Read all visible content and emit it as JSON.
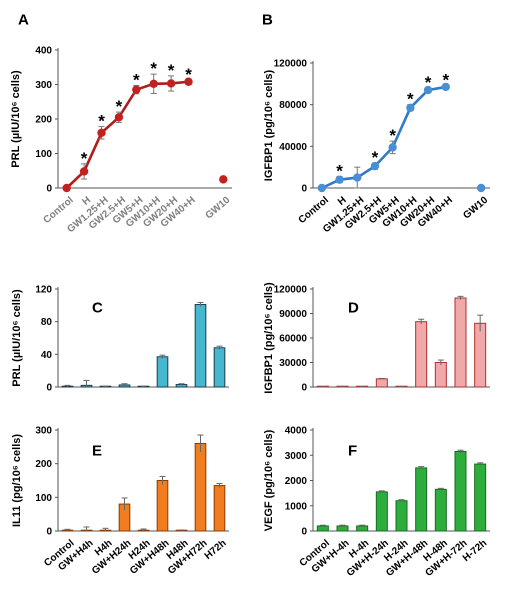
{
  "chart_data": [
    {
      "panel": "A",
      "type": "line",
      "ylabel": "PRL (µIU/10⁶ cells)",
      "ylim": [
        0,
        400
      ],
      "yticks": [
        0,
        100,
        200,
        300,
        400
      ],
      "categories": [
        "Control",
        "H",
        "GW1.25+H",
        "GW2.5+H",
        "GW5+H",
        "GW10+H",
        "GW20+H",
        "GW40+H",
        "",
        "GW10"
      ],
      "category_colors": [
        "#808080",
        "#808080",
        "#808080",
        "#808080",
        "#808080",
        "#808080",
        "#808080",
        "#808080",
        "#808080",
        "#808080"
      ],
      "series": [
        {
          "values": [
            0,
            48,
            160,
            205,
            285,
            302,
            303,
            308,
            null,
            25
          ],
          "errors": [
            0,
            22,
            18,
            15,
            12,
            28,
            22,
            5,
            null,
            2
          ]
        }
      ],
      "significant": [
        false,
        true,
        true,
        true,
        true,
        true,
        true,
        true,
        false,
        false
      ],
      "line_color": "#b01c1c",
      "marker_color": "#c42020"
    },
    {
      "panel": "B",
      "type": "line",
      "ylabel": "IGFBP1 (pg/10⁶ cells)",
      "ylim": [
        0,
        120000
      ],
      "yticks": [
        0,
        40000,
        80000,
        120000
      ],
      "categories": [
        "Control",
        "H",
        "GW1.25+H",
        "GW2.5+H",
        "GW5+H",
        "GW10+H",
        "GW20+H",
        "GW40+H",
        "",
        "GW10"
      ],
      "category_colors": [
        "#000000",
        "#000000",
        "#000000",
        "#000000",
        "#000000",
        "#000000",
        "#000000",
        "#000000",
        "#000000",
        "#000000"
      ],
      "series": [
        {
          "values": [
            0,
            8000,
            10000,
            21000,
            39000,
            77000,
            94000,
            97000,
            null,
            0
          ],
          "errors": [
            0,
            3000,
            10000,
            3000,
            6000,
            3000,
            2000,
            1500,
            null,
            0
          ]
        }
      ],
      "significant": [
        false,
        true,
        false,
        true,
        true,
        true,
        true,
        true,
        false,
        false
      ],
      "line_color": "#2f7bc4",
      "marker_color": "#4a8fd6"
    },
    {
      "panel": "C",
      "type": "bar",
      "ylabel": "PRL (µIU/10⁶ cells)",
      "ylim": [
        0,
        120
      ],
      "yticks": [
        0,
        40,
        80,
        120
      ],
      "values": [
        0.5,
        2,
        0.5,
        2.5,
        0.5,
        37,
        3,
        101,
        48
      ],
      "errors": [
        1.5,
        6,
        0.5,
        1.5,
        0.5,
        2,
        1,
        2.5,
        2
      ],
      "bar_color": "#45b7cf",
      "bar_edge": "#1c3e4a"
    },
    {
      "panel": "D",
      "type": "bar",
      "ylabel": "IGFBP1 (pg/10⁶ cells)",
      "ylim": [
        0,
        120000
      ],
      "yticks": [
        0,
        30000,
        60000,
        90000,
        120000
      ],
      "values": [
        200,
        200,
        200,
        10000,
        300,
        80000,
        30000,
        109000,
        78000
      ],
      "errors": [
        100,
        100,
        100,
        500,
        100,
        3000,
        3000,
        2000,
        10000
      ],
      "bar_color": "#f0a8a8",
      "bar_edge": "#b03030"
    },
    {
      "panel": "E",
      "type": "bar",
      "ylabel": "IL11 (pg/10⁶ cells)",
      "ylim": [
        0,
        300
      ],
      "yticks": [
        0,
        100,
        200,
        300
      ],
      "categories": [
        "Control",
        "GW+H4h",
        "H4h",
        "GW+H24h",
        "H24h",
        "GW+H48h",
        "H48h",
        "GW+H72h",
        "H72h"
      ],
      "values": [
        2,
        2,
        2,
        80,
        2,
        150,
        2,
        260,
        135
      ],
      "errors": [
        3,
        10,
        6,
        18,
        4,
        12,
        1,
        25,
        6
      ],
      "bar_color": "#f07d1e",
      "bar_edge": "#8a3c05"
    },
    {
      "panel": "F",
      "type": "bar",
      "ylabel": "VEGF (pg/10⁶ cells)",
      "ylim": [
        0,
        4000
      ],
      "yticks": [
        0,
        1000,
        2000,
        3000,
        4000
      ],
      "categories": [
        "Control",
        "GW+H-4h",
        "H-4h",
        "GW+H-24h",
        "H-24h",
        "GW+H-48h",
        "H-48h",
        "GW+H-72h",
        "H-72h"
      ],
      "values": [
        200,
        200,
        200,
        1550,
        1200,
        2500,
        1650,
        3150,
        2650
      ],
      "errors": [
        30,
        30,
        30,
        40,
        40,
        50,
        40,
        50,
        50
      ],
      "bar_color": "#2dae3c",
      "bar_edge": "#1a6b24"
    }
  ]
}
